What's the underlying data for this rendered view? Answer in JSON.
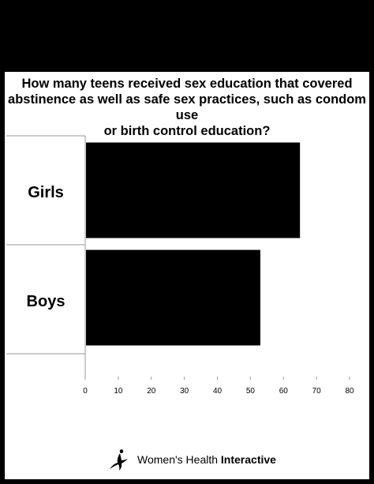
{
  "chart_data": {
    "type": "bar",
    "orientation": "horizontal",
    "title_lines": [
      "How many teens received sex education that covered",
      "abstinence as well as safe sex practices, such as condom use",
      "or birth control education?"
    ],
    "categories": [
      "Girls",
      "Boys"
    ],
    "values": [
      65,
      53
    ],
    "xlim": [
      0,
      80
    ],
    "xticks": [
      "0",
      "10",
      "20",
      "30",
      "40",
      "50",
      "60",
      "70",
      "80"
    ],
    "bar_color": "#000000",
    "grid": false,
    "legend": "none"
  },
  "footer": {
    "brand_part1": "Women's Health",
    "brand_part2": "Interactive",
    "logo_icon": "figure-runner-icon"
  }
}
